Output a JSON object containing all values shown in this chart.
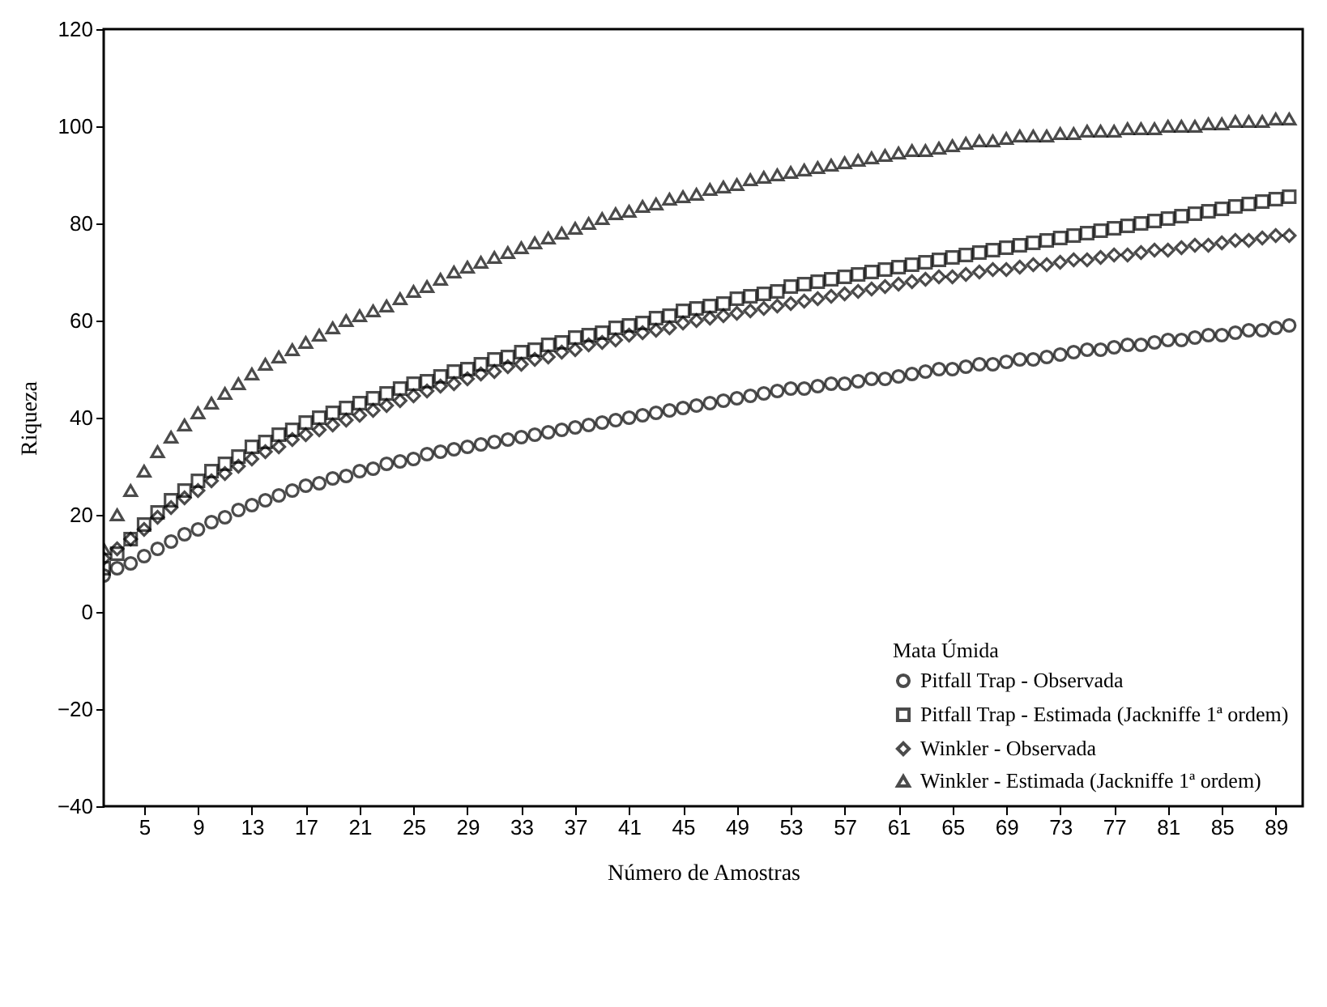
{
  "chart_data": {
    "type": "scatter",
    "xlabel": "Número de Amostras",
    "ylabel": "Riqueza",
    "legend_title": "Mata Úmida",
    "legend": "bottom right",
    "grid": false,
    "xlim": [
      2,
      91
    ],
    "xticks": [
      5,
      9,
      13,
      17,
      21,
      25,
      29,
      33,
      37,
      41,
      45,
      49,
      53,
      57,
      61,
      65,
      69,
      73,
      77,
      81,
      85,
      89
    ],
    "ylim": [
      -40,
      120
    ],
    "yticks": [
      -40,
      -20,
      0,
      20,
      40,
      60,
      80,
      100,
      120
    ],
    "x": [
      2,
      3,
      4,
      5,
      6,
      7,
      8,
      9,
      10,
      11,
      12,
      13,
      14,
      15,
      16,
      17,
      18,
      19,
      20,
      21,
      22,
      23,
      24,
      25,
      26,
      27,
      28,
      29,
      30,
      31,
      32,
      33,
      34,
      35,
      36,
      37,
      38,
      39,
      40,
      41,
      42,
      43,
      44,
      45,
      46,
      47,
      48,
      49,
      50,
      51,
      52,
      53,
      54,
      55,
      56,
      57,
      58,
      59,
      60,
      61,
      62,
      63,
      64,
      65,
      66,
      67,
      68,
      69,
      70,
      71,
      72,
      73,
      74,
      75,
      76,
      77,
      78,
      79,
      80,
      81,
      82,
      83,
      84,
      85,
      86,
      87,
      88,
      89,
      90
    ],
    "series": [
      {
        "name": "Pitfall Trap - Observada",
        "color": "#000000",
        "marker": "circle",
        "values": [
          7.5,
          9,
          10,
          11.5,
          13,
          14.5,
          16,
          17,
          18.5,
          19.5,
          21,
          22,
          23,
          24,
          25,
          26,
          26.5,
          27.5,
          28,
          29,
          29.5,
          30.5,
          31,
          31.5,
          32.5,
          33,
          33.5,
          34,
          34.5,
          35,
          35.5,
          36,
          36.5,
          37,
          37.5,
          38,
          38.5,
          39,
          39.5,
          40,
          40.5,
          41,
          41.5,
          42,
          42.5,
          43,
          43.5,
          44,
          44.5,
          45,
          45.5,
          46,
          46,
          46.5,
          47,
          47,
          47.5,
          48,
          48,
          48.5,
          49,
          49.5,
          50,
          50,
          50.5,
          51,
          51,
          51.5,
          52,
          52,
          52.5,
          53,
          53.5,
          54,
          54,
          54.5,
          55,
          55,
          55.5,
          56,
          56,
          56.5,
          57,
          57,
          57.5,
          58,
          58,
          58.5,
          59
        ]
      },
      {
        "name": "Pitfall Trap - Estimada (Jackniffe 1ª ordem)",
        "color": "#000000",
        "marker": "square",
        "values": [
          9,
          12,
          15,
          18,
          20.5,
          23,
          25,
          27,
          29,
          30.5,
          32,
          34,
          35,
          36.5,
          37.5,
          39,
          40,
          41,
          42,
          43,
          44,
          45,
          46,
          47,
          47.5,
          48.5,
          49.5,
          50,
          51,
          52,
          52.5,
          53.5,
          54,
          55,
          55.5,
          56.5,
          57,
          57.5,
          58.5,
          59,
          59.5,
          60.5,
          61,
          62,
          62.5,
          63,
          63.5,
          64.5,
          65,
          65.5,
          66,
          67,
          67.5,
          68,
          68.5,
          69,
          69.5,
          70,
          70.5,
          71,
          71.5,
          72,
          72.5,
          73,
          73.5,
          74,
          74.5,
          75,
          75.5,
          76,
          76.5,
          77,
          77.5,
          78,
          78.5,
          79,
          79.5,
          80,
          80.5,
          81,
          81.5,
          82,
          82.5,
          83,
          83.5,
          84,
          84.5,
          85,
          85.5
        ]
      },
      {
        "name": "Winkler - Observada",
        "color": "#000000",
        "marker": "diamond",
        "values": [
          11,
          13,
          15,
          17,
          19.5,
          21.5,
          23.5,
          25,
          27,
          28.5,
          30,
          31.5,
          33,
          34,
          35.5,
          36.5,
          37.5,
          38.5,
          39.5,
          40.5,
          41.5,
          42.5,
          43.5,
          44.5,
          45.5,
          46.5,
          47,
          48,
          49,
          49.5,
          50.5,
          51,
          52,
          52.5,
          53.5,
          54,
          55,
          55.5,
          56,
          57,
          57.5,
          58,
          58.5,
          59.5,
          60,
          60.5,
          61,
          61.5,
          62,
          62.5,
          63,
          63.5,
          64,
          64.5,
          65,
          65.5,
          66,
          66.5,
          67,
          67.5,
          68,
          68.5,
          69,
          69,
          69.5,
          70,
          70.5,
          70.5,
          71,
          71.5,
          71.5,
          72,
          72.5,
          72.5,
          73,
          73.5,
          73.5,
          74,
          74.5,
          74.5,
          75,
          75.5,
          75.5,
          76,
          76.5,
          76.5,
          77,
          77.5,
          77.5
        ]
      },
      {
        "name": "Winkler - Estimada (Jackniffe 1ª ordem)",
        "color": "#000000",
        "marker": "triangle",
        "values": [
          13,
          20,
          25,
          29,
          33,
          36,
          38.5,
          41,
          43,
          45,
          47,
          49,
          51,
          52.5,
          54,
          55.5,
          57,
          58.5,
          60,
          61,
          62,
          63,
          64.5,
          66,
          67,
          68.5,
          70,
          71,
          72,
          73,
          74,
          75,
          76,
          77,
          78,
          79,
          80,
          81,
          82,
          82.5,
          83.5,
          84,
          85,
          85.5,
          86,
          87,
          87.5,
          88,
          89,
          89.5,
          90,
          90.5,
          91,
          91.5,
          92,
          92.5,
          93,
          93.5,
          94,
          94.5,
          95,
          95,
          95.5,
          96,
          96.5,
          97,
          97,
          97.5,
          98,
          98,
          98,
          98.5,
          98.5,
          99,
          99,
          99,
          99.5,
          99.5,
          99.5,
          100,
          100,
          100,
          100.5,
          100.5,
          101,
          101,
          101,
          101.5,
          101.5
        ]
      }
    ]
  }
}
